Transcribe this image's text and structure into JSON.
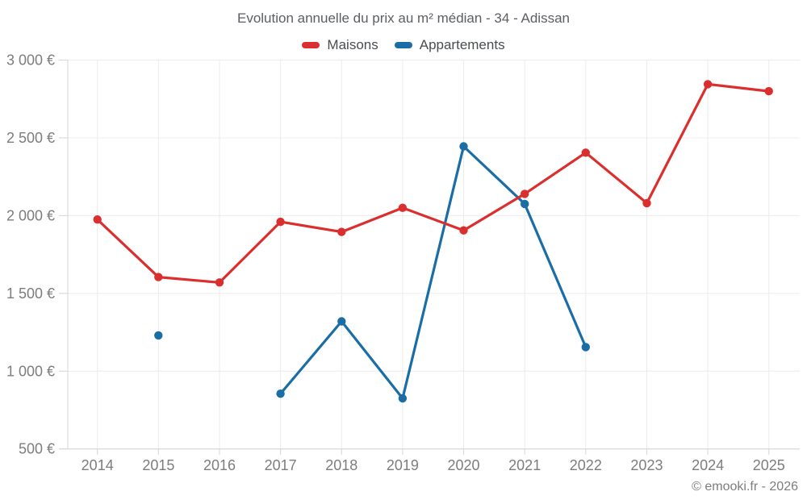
{
  "footer": {
    "credit": "© emooki.fr - 2026"
  },
  "chart_data": {
    "type": "line",
    "title": "Evolution annuelle du prix au m² médian - 34 - Adissan",
    "categories": [
      2014,
      2015,
      2016,
      2017,
      2018,
      2019,
      2020,
      2021,
      2022,
      2023,
      2024,
      2025
    ],
    "series": [
      {
        "name": "Maisons",
        "color": "#db2f2f",
        "values": [
          1975,
          1605,
          1570,
          1960,
          1895,
          2050,
          1905,
          2140,
          2405,
          2080,
          2845,
          2800
        ]
      },
      {
        "name": "Appartements",
        "color": "#1a6ea5",
        "values": [
          null,
          1230,
          null,
          855,
          1320,
          825,
          2445,
          2075,
          1155,
          null,
          null,
          null
        ]
      }
    ],
    "xlabel": "",
    "ylabel": "",
    "ylim": [
      500,
      3000
    ],
    "ytick_step": 500,
    "ytick_labels": [
      "500 €",
      "1 000 €",
      "1 500 €",
      "2 000 €",
      "2 500 €",
      "3 000 €"
    ],
    "grid": true,
    "legend_position": "top",
    "currency_suffix": " €"
  }
}
